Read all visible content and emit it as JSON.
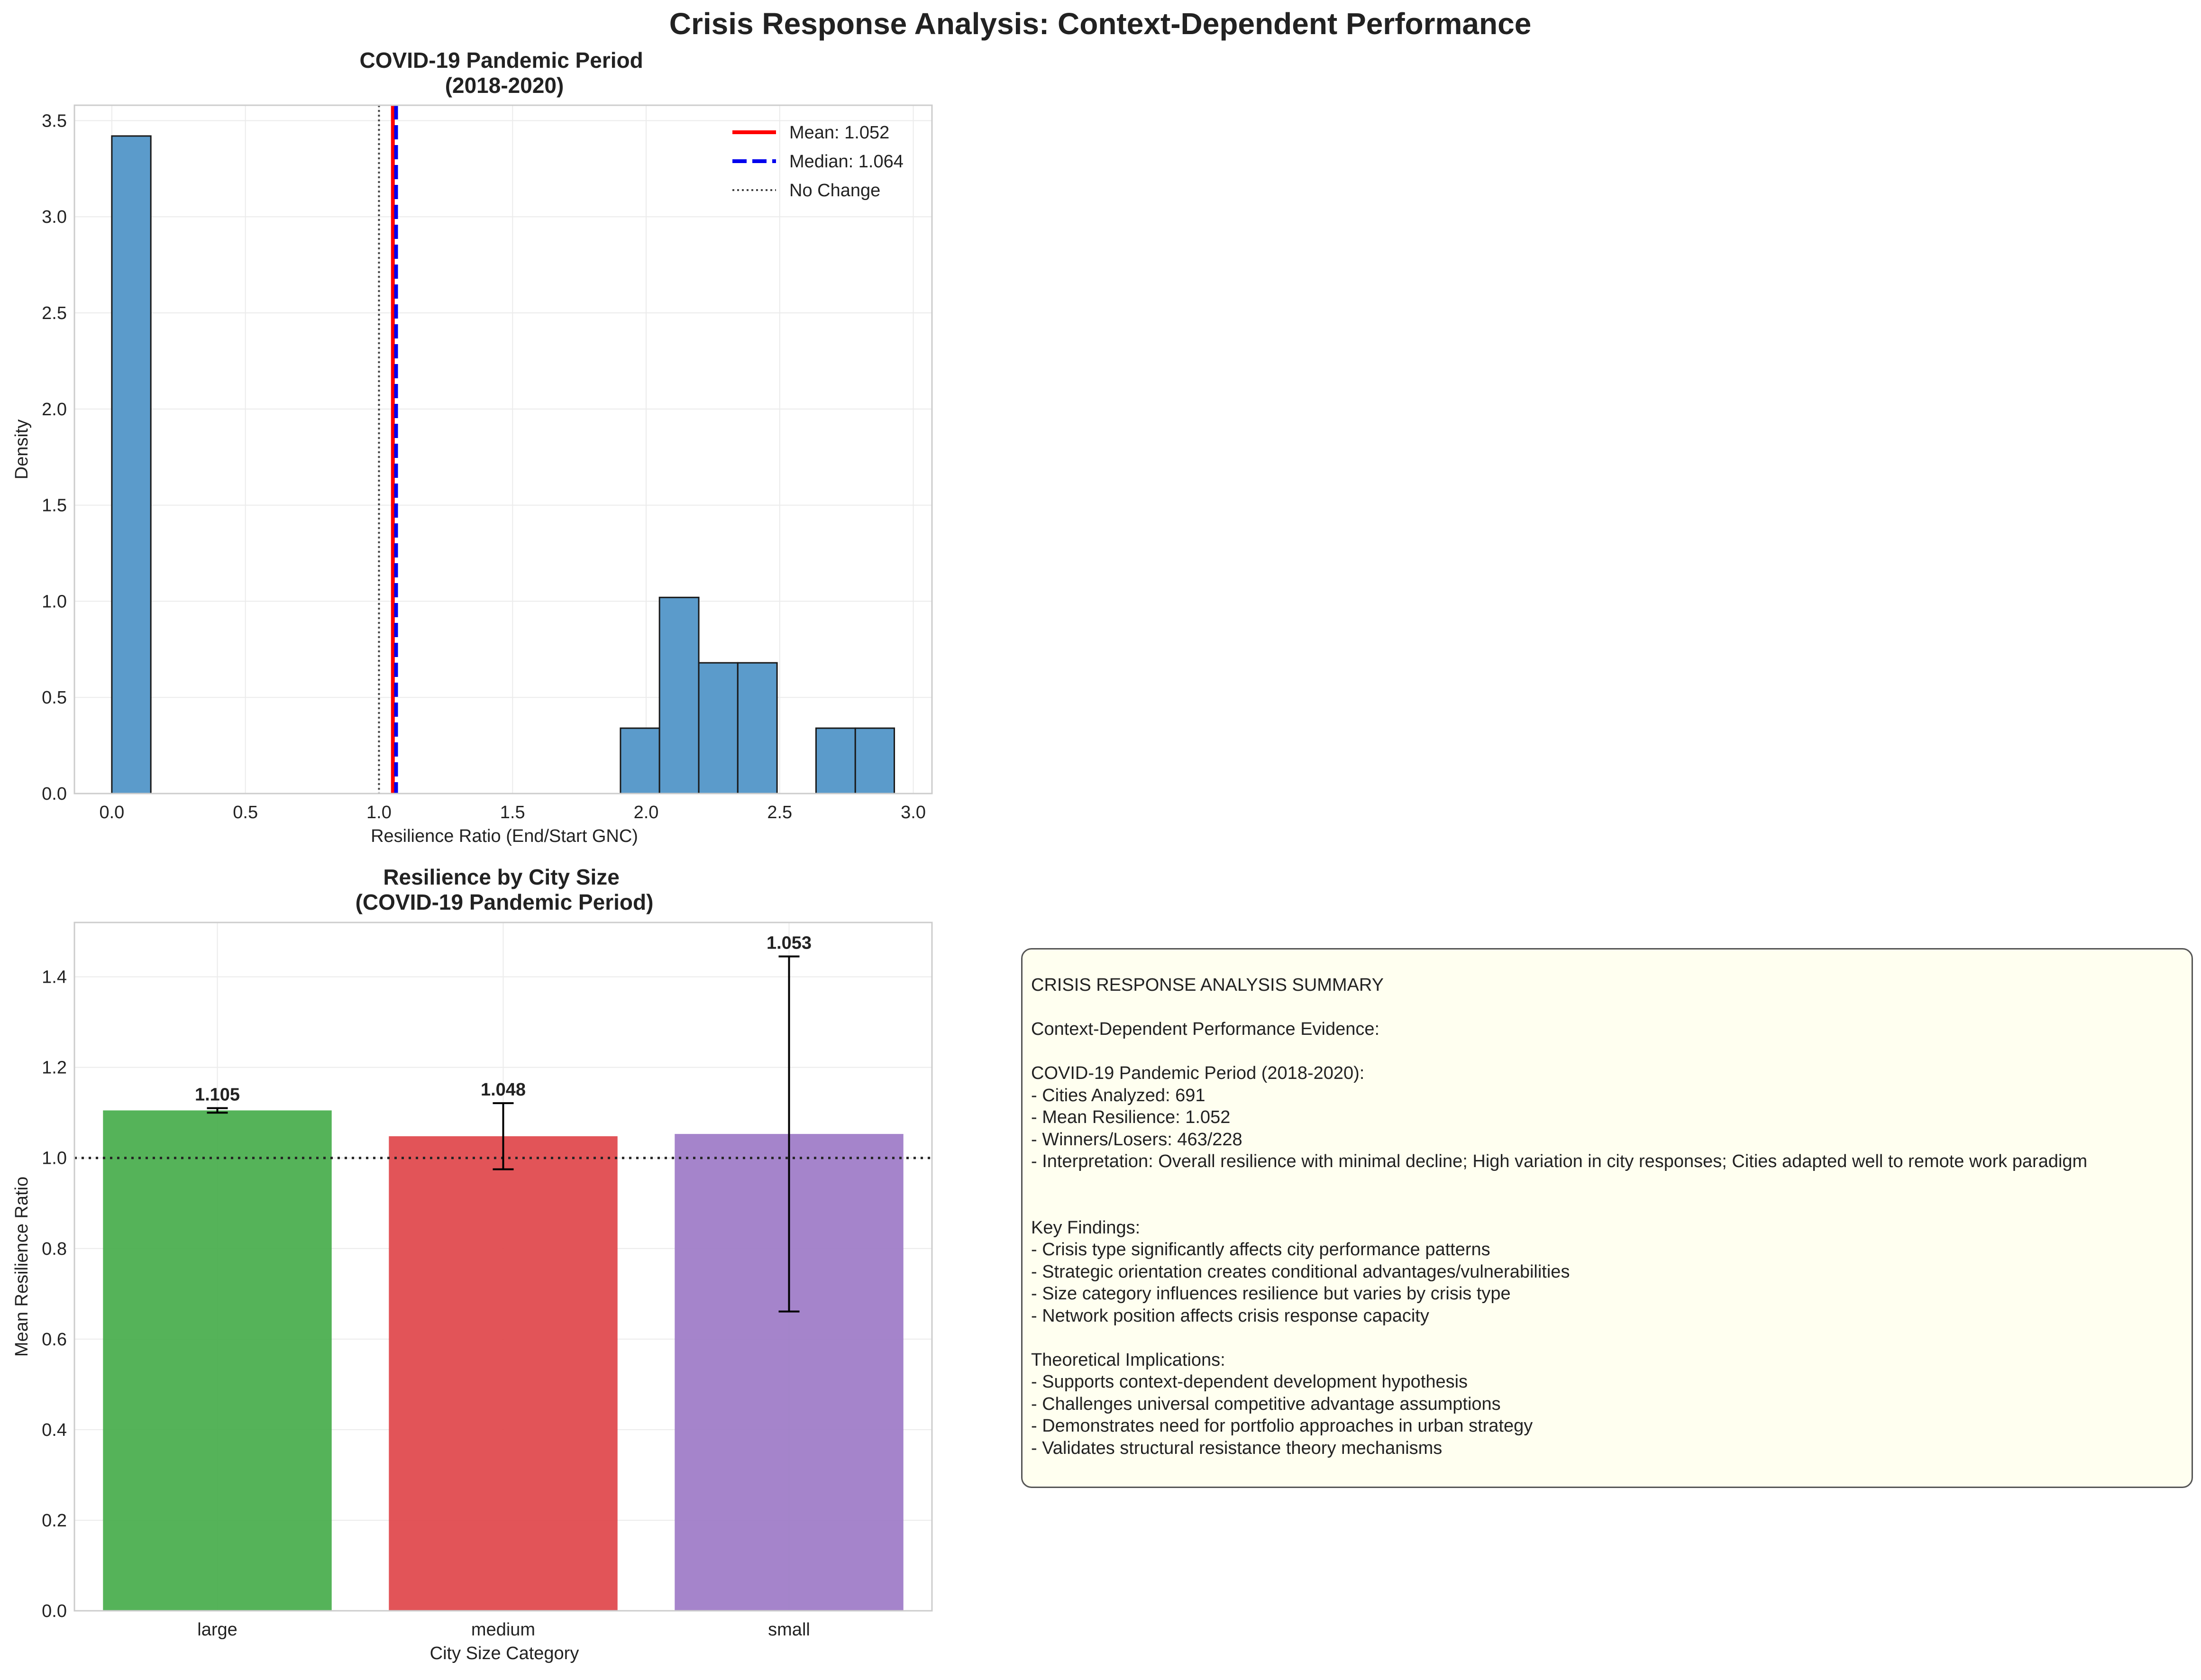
{
  "figure": {
    "suptitle": "Crisis Response Analysis: Context-Dependent Performance",
    "colors": {
      "hist_fill": "#5b9bcb",
      "mean_line": "#ff0000",
      "median_line": "#0000ee",
      "large": "#4caf50",
      "medium": "#e04b4f",
      "small": "#a07dc8",
      "summary_bg": "#fffff0"
    }
  },
  "chart_data": [
    {
      "type": "bar",
      "subtype": "histogram",
      "title": "COVID-19 Pandemic Period\n(2018-2020)",
      "xlabel": "Resilience Ratio (End/Start GNC)",
      "ylabel": "Density",
      "xlim": [
        -0.14,
        3.07
      ],
      "ylim": [
        0,
        3.58
      ],
      "xticks": [
        0.0,
        0.5,
        1.0,
        1.5,
        2.0,
        2.5,
        3.0
      ],
      "xtick_labels": [
        "0.0",
        "0.5",
        "1.0",
        "1.5",
        "2.0",
        "2.5",
        "3.0"
      ],
      "yticks": [
        0.0,
        0.5,
        1.0,
        1.5,
        2.0,
        2.5,
        3.0,
        3.5
      ],
      "ytick_labels": [
        "0.0",
        "0.5",
        "1.0",
        "1.5",
        "2.0",
        "2.5",
        "3.0",
        "3.5"
      ],
      "grid": true,
      "bins": [
        {
          "x0": 0.0,
          "x1": 0.146,
          "density": 3.42
        },
        {
          "x0": 1.904,
          "x1": 2.05,
          "density": 0.34
        },
        {
          "x0": 2.05,
          "x1": 2.197,
          "density": 1.02
        },
        {
          "x0": 2.197,
          "x1": 2.343,
          "density": 0.68
        },
        {
          "x0": 2.343,
          "x1": 2.49,
          "density": 0.68
        },
        {
          "x0": 2.636,
          "x1": 2.783,
          "density": 0.34
        },
        {
          "x0": 2.783,
          "x1": 2.929,
          "density": 0.34
        }
      ],
      "reference_lines": [
        {
          "name": "Mean: 1.052",
          "x": 1.052,
          "style": "solid",
          "color": "#ff0000"
        },
        {
          "name": "Median: 1.064",
          "x": 1.064,
          "style": "dashed",
          "color": "#0000ee"
        },
        {
          "name": "No Change",
          "x": 1.0,
          "style": "dotted",
          "color": "#444444"
        }
      ],
      "legend_placement": "top-right"
    },
    {
      "type": "bar",
      "title": "Resilience by City Size\n(COVID-19 Pandemic Period)",
      "xlabel": "City Size Category",
      "ylabel": "Mean Resilience Ratio",
      "categories": [
        "large",
        "medium",
        "small"
      ],
      "values": [
        1.105,
        1.048,
        1.053
      ],
      "value_labels": [
        "1.105",
        "1.048",
        "1.053"
      ],
      "error": [
        0.005,
        0.073,
        0.392
      ],
      "colors": [
        "#4caf50",
        "#e04b4f",
        "#a07dc8"
      ],
      "ylim": [
        0,
        1.52
      ],
      "yticks": [
        0.0,
        0.2,
        0.4,
        0.6,
        0.8,
        1.0,
        1.2,
        1.4
      ],
      "ytick_labels": [
        "0.0",
        "0.2",
        "0.4",
        "0.6",
        "0.8",
        "1.0",
        "1.2",
        "1.4"
      ],
      "reference_line": 1.0,
      "grid": true
    }
  ],
  "summary": {
    "lines": [
      "CRISIS RESPONSE ANALYSIS SUMMARY",
      "",
      "Context-Dependent Performance Evidence:",
      "",
      "COVID-19 Pandemic Period (2018-2020):",
      "- Cities Analyzed: 691",
      "- Mean Resilience: 1.052",
      "- Winners/Losers: 463/228",
      "- Interpretation: Overall resilience with minimal decline; High variation in city responses; Cities adapted well to remote work paradigm",
      "",
      "",
      "Key Findings:",
      "- Crisis type significantly affects city performance patterns",
      "- Strategic orientation creates conditional advantages/vulnerabilities",
      "- Size category influences resilience but varies by crisis type",
      "- Network position affects crisis response capacity",
      "",
      "Theoretical Implications:",
      "- Supports context-dependent development hypothesis",
      "- Challenges universal competitive advantage assumptions",
      "- Demonstrates need for portfolio approaches in urban strategy",
      "- Validates structural resistance theory mechanisms"
    ]
  }
}
